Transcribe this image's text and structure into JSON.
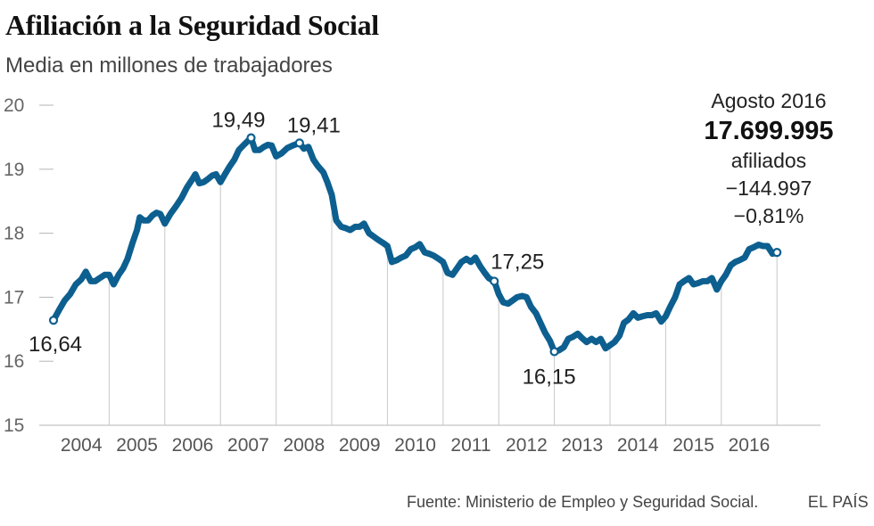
{
  "title": "Afiliación a la Seguridad Social",
  "subtitle": "Media en millones de trabajadores",
  "callout": {
    "date": "Agosto 2016",
    "value": "17.699.995",
    "unit": "afiliados",
    "change_abs": "−144.997",
    "change_pct": "−0,81%"
  },
  "source": "Fuente: Ministerio de Empleo y Seguridad Social.",
  "brand": "EL PAÍS",
  "colors": {
    "line": "#0d5f8f",
    "grid": "#c8c8c8"
  },
  "chart_data": {
    "type": "line",
    "title": "Afiliación a la Seguridad Social",
    "ylabel": "Media en millones de trabajadores",
    "ylim": [
      15,
      20
    ],
    "yticks": [
      15,
      16,
      17,
      18,
      19,
      20
    ],
    "xlim": [
      2003.0,
      2016.67
    ],
    "xtick_labels": [
      {
        "label": "2004",
        "t": 2003.5
      },
      {
        "label": "2005",
        "t": 2004.5
      },
      {
        "label": "2006",
        "t": 2005.5
      },
      {
        "label": "2007",
        "t": 2006.5
      },
      {
        "label": "2008",
        "t": 2007.5
      },
      {
        "label": "2009",
        "t": 2008.5
      },
      {
        "label": "2010",
        "t": 2009.5
      },
      {
        "label": "2011",
        "t": 2010.5
      },
      {
        "label": "2012",
        "t": 2011.5
      },
      {
        "label": "2013",
        "t": 2012.5
      },
      {
        "label": "2014",
        "t": 2013.5
      },
      {
        "label": "2015",
        "t": 2014.5
      },
      {
        "label": "2016",
        "t": 2015.5
      }
    ],
    "year_boundaries": [
      2004,
      2005,
      2006,
      2007,
      2008,
      2009,
      2010,
      2011,
      2012,
      2013,
      2014,
      2015,
      2016
    ],
    "series": [
      {
        "name": "Afiliados (millones)",
        "points": [
          [
            2003.0,
            16.64
          ],
          [
            2003.1,
            16.8
          ],
          [
            2003.2,
            16.95
          ],
          [
            2003.3,
            17.05
          ],
          [
            2003.4,
            17.2
          ],
          [
            2003.5,
            17.28
          ],
          [
            2003.58,
            17.4
          ],
          [
            2003.67,
            17.25
          ],
          [
            2003.75,
            17.25
          ],
          [
            2003.83,
            17.3
          ],
          [
            2003.92,
            17.35
          ],
          [
            2004.0,
            17.35
          ],
          [
            2004.08,
            17.2
          ],
          [
            2004.17,
            17.35
          ],
          [
            2004.25,
            17.45
          ],
          [
            2004.33,
            17.6
          ],
          [
            2004.42,
            17.85
          ],
          [
            2004.5,
            18.05
          ],
          [
            2004.55,
            18.25
          ],
          [
            2004.62,
            18.2
          ],
          [
            2004.7,
            18.2
          ],
          [
            2004.78,
            18.28
          ],
          [
            2004.85,
            18.32
          ],
          [
            2004.92,
            18.3
          ],
          [
            2005.0,
            18.15
          ],
          [
            2005.1,
            18.3
          ],
          [
            2005.2,
            18.42
          ],
          [
            2005.3,
            18.55
          ],
          [
            2005.4,
            18.72
          ],
          [
            2005.5,
            18.85
          ],
          [
            2005.55,
            18.92
          ],
          [
            2005.62,
            18.78
          ],
          [
            2005.7,
            18.8
          ],
          [
            2005.78,
            18.85
          ],
          [
            2005.85,
            18.9
          ],
          [
            2005.92,
            18.92
          ],
          [
            2006.0,
            18.8
          ],
          [
            2006.08,
            18.92
          ],
          [
            2006.17,
            19.05
          ],
          [
            2006.25,
            19.15
          ],
          [
            2006.33,
            19.3
          ],
          [
            2006.42,
            19.38
          ],
          [
            2006.55,
            19.49
          ],
          [
            2006.62,
            19.3
          ],
          [
            2006.7,
            19.3
          ],
          [
            2006.78,
            19.35
          ],
          [
            2006.85,
            19.38
          ],
          [
            2006.92,
            19.37
          ],
          [
            2007.0,
            19.2
          ],
          [
            2007.1,
            19.25
          ],
          [
            2007.2,
            19.33
          ],
          [
            2007.3,
            19.37
          ],
          [
            2007.42,
            19.41
          ],
          [
            2007.5,
            19.32
          ],
          [
            2007.58,
            19.35
          ],
          [
            2007.67,
            19.15
          ],
          [
            2007.75,
            19.05
          ],
          [
            2007.85,
            18.95
          ],
          [
            2007.92,
            18.8
          ],
          [
            2008.0,
            18.6
          ],
          [
            2008.08,
            18.2
          ],
          [
            2008.17,
            18.1
          ],
          [
            2008.25,
            18.08
          ],
          [
            2008.33,
            18.05
          ],
          [
            2008.42,
            18.1
          ],
          [
            2008.5,
            18.1
          ],
          [
            2008.58,
            18.15
          ],
          [
            2008.67,
            18.0
          ],
          [
            2008.75,
            17.95
          ],
          [
            2008.83,
            17.9
          ],
          [
            2008.92,
            17.85
          ],
          [
            2009.0,
            17.8
          ],
          [
            2009.08,
            17.55
          ],
          [
            2009.17,
            17.58
          ],
          [
            2009.25,
            17.62
          ],
          [
            2009.33,
            17.65
          ],
          [
            2009.42,
            17.75
          ],
          [
            2009.5,
            17.78
          ],
          [
            2009.58,
            17.83
          ],
          [
            2009.67,
            17.7
          ],
          [
            2009.75,
            17.68
          ],
          [
            2009.83,
            17.65
          ],
          [
            2009.92,
            17.6
          ],
          [
            2010.0,
            17.55
          ],
          [
            2010.08,
            17.38
          ],
          [
            2010.17,
            17.35
          ],
          [
            2010.25,
            17.45
          ],
          [
            2010.33,
            17.55
          ],
          [
            2010.42,
            17.6
          ],
          [
            2010.5,
            17.55
          ],
          [
            2010.58,
            17.62
          ],
          [
            2010.67,
            17.48
          ],
          [
            2010.75,
            17.38
          ],
          [
            2010.82,
            17.3
          ],
          [
            2010.92,
            17.25
          ],
          [
            2011.0,
            17.05
          ],
          [
            2011.08,
            16.92
          ],
          [
            2011.17,
            16.9
          ],
          [
            2011.25,
            16.95
          ],
          [
            2011.33,
            17.0
          ],
          [
            2011.42,
            17.02
          ],
          [
            2011.5,
            17.0
          ],
          [
            2011.58,
            16.85
          ],
          [
            2011.67,
            16.75
          ],
          [
            2011.75,
            16.6
          ],
          [
            2011.83,
            16.45
          ],
          [
            2011.92,
            16.32
          ],
          [
            2012.0,
            16.15
          ],
          [
            2012.08,
            16.17
          ],
          [
            2012.17,
            16.22
          ],
          [
            2012.25,
            16.35
          ],
          [
            2012.33,
            16.38
          ],
          [
            2012.42,
            16.43
          ],
          [
            2012.5,
            16.36
          ],
          [
            2012.58,
            16.3
          ],
          [
            2012.67,
            16.35
          ],
          [
            2012.75,
            16.3
          ],
          [
            2012.83,
            16.35
          ],
          [
            2012.92,
            16.2
          ],
          [
            2013.0,
            16.25
          ],
          [
            2013.08,
            16.3
          ],
          [
            2013.17,
            16.4
          ],
          [
            2013.25,
            16.6
          ],
          [
            2013.33,
            16.65
          ],
          [
            2013.42,
            16.75
          ],
          [
            2013.5,
            16.68
          ],
          [
            2013.58,
            16.7
          ],
          [
            2013.67,
            16.72
          ],
          [
            2013.75,
            16.72
          ],
          [
            2013.83,
            16.75
          ],
          [
            2013.92,
            16.62
          ],
          [
            2014.0,
            16.7
          ],
          [
            2014.08,
            16.85
          ],
          [
            2014.17,
            17.0
          ],
          [
            2014.25,
            17.2
          ],
          [
            2014.33,
            17.25
          ],
          [
            2014.42,
            17.3
          ],
          [
            2014.5,
            17.2
          ],
          [
            2014.58,
            17.22
          ],
          [
            2014.67,
            17.25
          ],
          [
            2014.75,
            17.25
          ],
          [
            2014.83,
            17.3
          ],
          [
            2014.92,
            17.12
          ],
          [
            2015.0,
            17.25
          ],
          [
            2015.08,
            17.35
          ],
          [
            2015.17,
            17.5
          ],
          [
            2015.25,
            17.55
          ],
          [
            2015.33,
            17.58
          ],
          [
            2015.42,
            17.62
          ],
          [
            2015.5,
            17.75
          ],
          [
            2015.58,
            17.78
          ],
          [
            2015.67,
            17.82
          ],
          [
            2015.75,
            17.8
          ],
          [
            2015.83,
            17.8
          ],
          [
            2015.92,
            17.68
          ],
          [
            2016.0,
            17.7
          ]
        ]
      }
    ],
    "annotations": [
      {
        "label": "16,64",
        "t": 2003.0,
        "v": 16.64,
        "pos": "below"
      },
      {
        "label": "19,49",
        "t": 2006.55,
        "v": 19.49,
        "pos": "above-left"
      },
      {
        "label": "19,41",
        "t": 2007.42,
        "v": 19.41,
        "pos": "above-right"
      },
      {
        "label": "17,25",
        "t": 2010.92,
        "v": 17.25,
        "pos": "above-right"
      },
      {
        "label": "16,15",
        "t": 2012.0,
        "v": 16.15,
        "pos": "below"
      },
      {
        "label": "17,70",
        "t": 2016.0,
        "v": 17.7,
        "pos": "none"
      }
    ]
  }
}
